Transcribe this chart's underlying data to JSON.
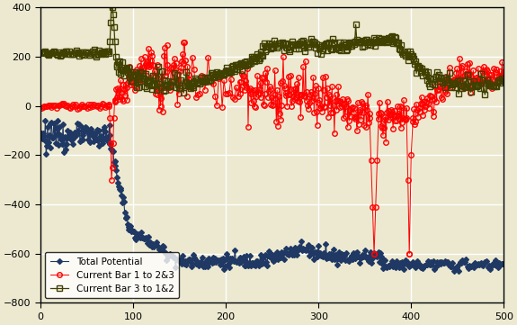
{
  "background_color": "#ece9d0",
  "plot_bg_color": "#ece9d0",
  "series": {
    "total_potential": {
      "label": "Total Potential",
      "color": "#1f3864",
      "marker": "D",
      "markersize": 3,
      "linewidth": 0.8
    },
    "current_bar1_to_23": {
      "label": "Current Bar 1 to 2&3",
      "color": "#ff0000",
      "marker": "o",
      "markersize": 4,
      "linewidth": 0.7,
      "markerfacecolor": "none"
    },
    "current_bar3_to_12": {
      "label": "Current Bar 3 to 1&2",
      "color": "#404000",
      "marker": "s",
      "markersize": 4,
      "linewidth": 0.9,
      "markerfacecolor": "none"
    }
  },
  "xlim": [
    0,
    500
  ],
  "ylim": [
    -800,
    400
  ],
  "yticks": [
    -800,
    -600,
    -400,
    -200,
    0,
    200,
    400
  ],
  "xticks": [
    0,
    100,
    200,
    300,
    400,
    500
  ],
  "grid": true,
  "legend_loc": "lower left"
}
